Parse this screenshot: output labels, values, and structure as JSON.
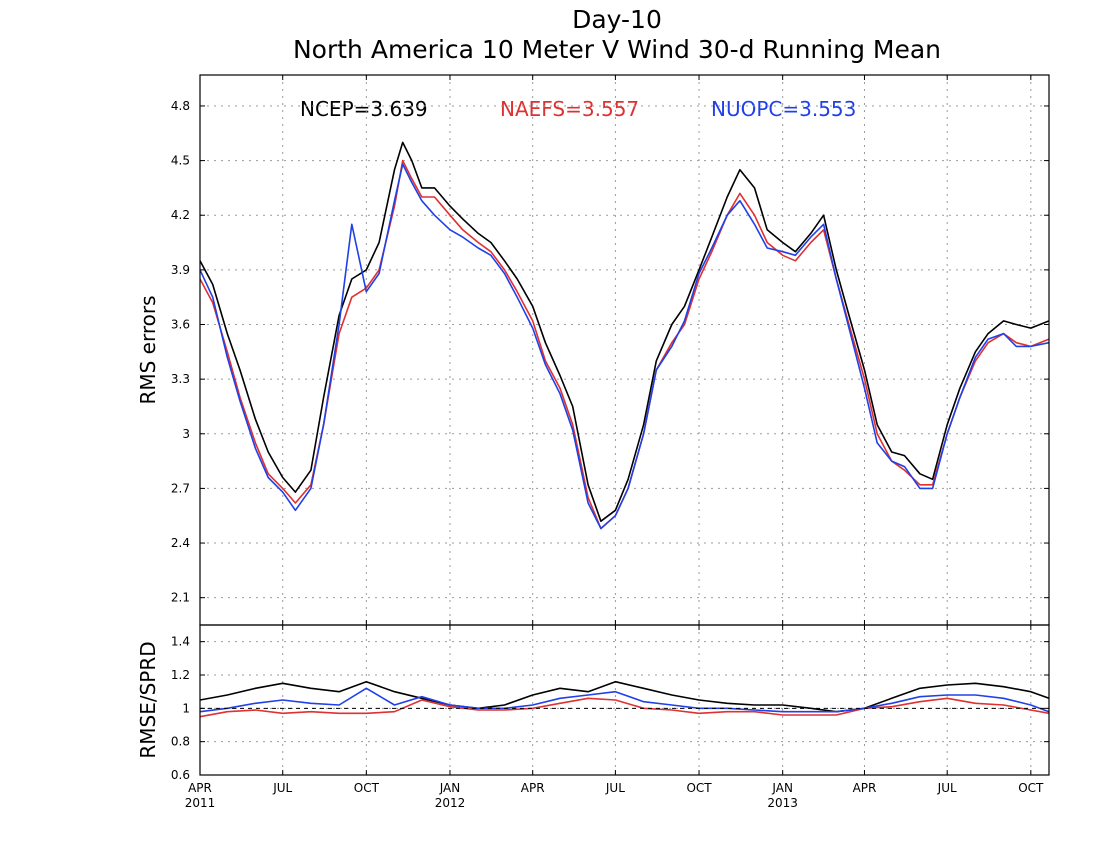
{
  "title_line1": "Day-10",
  "title_line2": "North America 10 Meter V Wind 30-d Running Mean",
  "colors": {
    "NCEP": "#000000",
    "NAEFS": "#e03030",
    "NUOPC": "#2040e8"
  },
  "chart_data": [
    {
      "type": "line",
      "ylabel": "RMS errors",
      "ylim": [
        1.95,
        4.97
      ],
      "yticks": [
        "2.1",
        "2.4",
        "2.7",
        "3",
        "3.3",
        "3.6",
        "3.9",
        "4.2",
        "4.5",
        "4.8"
      ],
      "grid": true,
      "legend": [
        {
          "name": "NCEP",
          "text": "NCEP=3.639"
        },
        {
          "name": "NAEFS",
          "text": "NAEFS=3.557"
        },
        {
          "name": "NUOPC",
          "text": "NUOPC=3.553"
        }
      ],
      "legend_position": "top",
      "x_range": [
        "2011-04-01",
        "2013-10-21"
      ],
      "series": [
        {
          "name": "NCEP",
          "x": [
            "2011-04-01",
            "2011-04-15",
            "2011-05-01",
            "2011-05-15",
            "2011-06-01",
            "2011-06-15",
            "2011-07-01",
            "2011-07-15",
            "2011-08-01",
            "2011-08-15",
            "2011-09-01",
            "2011-09-15",
            "2011-10-01",
            "2011-10-15",
            "2011-11-01",
            "2011-11-10",
            "2011-11-20",
            "2011-12-01",
            "2011-12-15",
            "2012-01-01",
            "2012-01-15",
            "2012-02-01",
            "2012-02-15",
            "2012-03-01",
            "2012-03-15",
            "2012-04-01",
            "2012-04-15",
            "2012-05-01",
            "2012-05-15",
            "2012-06-01",
            "2012-06-15",
            "2012-07-01",
            "2012-07-15",
            "2012-08-01",
            "2012-08-15",
            "2012-09-01",
            "2012-09-15",
            "2012-10-01",
            "2012-10-15",
            "2012-11-01",
            "2012-11-15",
            "2012-12-01",
            "2012-12-15",
            "2013-01-01",
            "2013-01-15",
            "2013-02-01",
            "2013-02-15",
            "2013-03-01",
            "2013-03-15",
            "2013-04-01",
            "2013-04-15",
            "2013-05-01",
            "2013-05-15",
            "2013-06-01",
            "2013-06-15",
            "2013-07-01",
            "2013-07-15",
            "2013-08-01",
            "2013-08-15",
            "2013-09-01",
            "2013-09-15",
            "2013-10-01",
            "2013-10-21"
          ],
          "values": [
            3.95,
            3.82,
            3.55,
            3.35,
            3.08,
            2.9,
            2.76,
            2.68,
            2.8,
            3.2,
            3.65,
            3.85,
            3.9,
            4.05,
            4.45,
            4.6,
            4.5,
            4.35,
            4.35,
            4.25,
            4.18,
            4.1,
            4.05,
            3.95,
            3.85,
            3.7,
            3.5,
            3.32,
            3.15,
            2.72,
            2.52,
            2.58,
            2.75,
            3.05,
            3.4,
            3.6,
            3.7,
            3.9,
            4.08,
            4.3,
            4.45,
            4.35,
            4.12,
            4.05,
            4.0,
            4.1,
            4.2,
            3.9,
            3.65,
            3.35,
            3.05,
            2.9,
            2.88,
            2.78,
            2.75,
            3.05,
            3.25,
            3.45,
            3.55,
            3.62,
            3.6,
            3.58,
            3.62
          ]
        },
        {
          "name": "NAEFS",
          "x": [
            "2011-04-01",
            "2011-04-15",
            "2011-05-01",
            "2011-05-15",
            "2011-06-01",
            "2011-06-15",
            "2011-07-01",
            "2011-07-15",
            "2011-08-01",
            "2011-08-15",
            "2011-09-01",
            "2011-09-15",
            "2011-10-01",
            "2011-10-15",
            "2011-11-01",
            "2011-11-10",
            "2011-11-20",
            "2011-12-01",
            "2011-12-15",
            "2012-01-01",
            "2012-01-15",
            "2012-02-01",
            "2012-02-15",
            "2012-03-01",
            "2012-03-15",
            "2012-04-01",
            "2012-04-15",
            "2012-05-01",
            "2012-05-15",
            "2012-06-01",
            "2012-06-15",
            "2012-07-01",
            "2012-07-15",
            "2012-08-01",
            "2012-08-15",
            "2012-09-01",
            "2012-09-15",
            "2012-10-01",
            "2012-10-15",
            "2012-11-01",
            "2012-11-15",
            "2012-12-01",
            "2012-12-15",
            "2013-01-01",
            "2013-01-15",
            "2013-02-01",
            "2013-02-15",
            "2013-03-01",
            "2013-03-15",
            "2013-04-01",
            "2013-04-15",
            "2013-05-01",
            "2013-05-15",
            "2013-06-01",
            "2013-06-15",
            "2013-07-01",
            "2013-07-15",
            "2013-08-01",
            "2013-08-15",
            "2013-09-01",
            "2013-09-15",
            "2013-10-01",
            "2013-10-21"
          ],
          "values": [
            3.85,
            3.72,
            3.45,
            3.2,
            2.95,
            2.78,
            2.7,
            2.62,
            2.72,
            3.05,
            3.55,
            3.75,
            3.8,
            3.9,
            4.25,
            4.5,
            4.4,
            4.3,
            4.3,
            4.2,
            4.12,
            4.05,
            4.0,
            3.9,
            3.78,
            3.62,
            3.4,
            3.25,
            3.05,
            2.65,
            2.48,
            2.55,
            2.7,
            3.0,
            3.35,
            3.5,
            3.6,
            3.85,
            4.0,
            4.2,
            4.32,
            4.2,
            4.05,
            3.98,
            3.95,
            4.05,
            4.12,
            3.85,
            3.6,
            3.3,
            3.0,
            2.85,
            2.8,
            2.72,
            2.72,
            3.0,
            3.2,
            3.4,
            3.5,
            3.55,
            3.5,
            3.48,
            3.52
          ]
        },
        {
          "name": "NUOPC",
          "x": [
            "2011-04-01",
            "2011-04-15",
            "2011-05-01",
            "2011-05-15",
            "2011-06-01",
            "2011-06-15",
            "2011-07-01",
            "2011-07-15",
            "2011-08-01",
            "2011-08-15",
            "2011-09-01",
            "2011-09-15",
            "2011-10-01",
            "2011-10-15",
            "2011-11-01",
            "2011-11-10",
            "2011-11-20",
            "2011-12-01",
            "2011-12-15",
            "2012-01-01",
            "2012-01-15",
            "2012-02-01",
            "2012-02-15",
            "2012-03-01",
            "2012-03-15",
            "2012-04-01",
            "2012-04-15",
            "2012-05-01",
            "2012-05-15",
            "2012-06-01",
            "2012-06-15",
            "2012-07-01",
            "2012-07-15",
            "2012-08-01",
            "2012-08-15",
            "2012-09-01",
            "2012-09-15",
            "2012-10-01",
            "2012-10-15",
            "2012-11-01",
            "2012-11-15",
            "2012-12-01",
            "2012-12-15",
            "2013-01-01",
            "2013-01-15",
            "2013-02-01",
            "2013-02-15",
            "2013-03-01",
            "2013-03-15",
            "2013-04-01",
            "2013-04-15",
            "2013-05-01",
            "2013-05-15",
            "2013-06-01",
            "2013-06-15",
            "2013-07-01",
            "2013-07-15",
            "2013-08-01",
            "2013-08-15",
            "2013-09-01",
            "2013-09-15",
            "2013-10-01",
            "2013-10-21"
          ],
          "values": [
            3.9,
            3.75,
            3.42,
            3.18,
            2.92,
            2.76,
            2.68,
            2.58,
            2.7,
            3.05,
            3.6,
            4.15,
            3.78,
            3.88,
            4.28,
            4.48,
            4.38,
            4.28,
            4.2,
            4.12,
            4.08,
            4.02,
            3.98,
            3.88,
            3.75,
            3.58,
            3.38,
            3.22,
            3.02,
            2.62,
            2.48,
            2.55,
            2.7,
            3.0,
            3.35,
            3.48,
            3.62,
            3.88,
            4.02,
            4.2,
            4.28,
            4.15,
            4.02,
            4.0,
            3.98,
            4.08,
            4.15,
            3.85,
            3.58,
            3.25,
            2.95,
            2.85,
            2.82,
            2.7,
            2.7,
            3.0,
            3.2,
            3.42,
            3.52,
            3.55,
            3.48,
            3.48,
            3.5
          ]
        }
      ]
    },
    {
      "type": "line",
      "ylabel": "RMSE/SPRD",
      "ylim": [
        0.6,
        1.5
      ],
      "yticks": [
        "0.6",
        "0.8",
        "1",
        "1.2",
        "1.4"
      ],
      "grid": true,
      "x_range": [
        "2011-04-01",
        "2013-10-21"
      ],
      "xticks": [
        {
          "date": "2011-04-01",
          "label": "APR",
          "year": "2011"
        },
        {
          "date": "2011-07-01",
          "label": "JUL",
          "year": ""
        },
        {
          "date": "2011-10-01",
          "label": "OCT",
          "year": ""
        },
        {
          "date": "2012-01-01",
          "label": "JAN",
          "year": "2012"
        },
        {
          "date": "2012-04-01",
          "label": "APR",
          "year": ""
        },
        {
          "date": "2012-07-01",
          "label": "JUL",
          "year": ""
        },
        {
          "date": "2012-10-01",
          "label": "OCT",
          "year": ""
        },
        {
          "date": "2013-01-01",
          "label": "JAN",
          "year": "2013"
        },
        {
          "date": "2013-04-01",
          "label": "APR",
          "year": ""
        },
        {
          "date": "2013-07-01",
          "label": "JUL",
          "year": ""
        },
        {
          "date": "2013-10-01",
          "label": "OCT",
          "year": ""
        }
      ],
      "series": [
        {
          "name": "NCEP",
          "x": [
            "2011-04-01",
            "2011-05-01",
            "2011-06-01",
            "2011-07-01",
            "2011-08-01",
            "2011-09-01",
            "2011-10-01",
            "2011-11-01",
            "2011-12-01",
            "2012-01-01",
            "2012-02-01",
            "2012-03-01",
            "2012-04-01",
            "2012-05-01",
            "2012-06-01",
            "2012-07-01",
            "2012-08-01",
            "2012-09-01",
            "2012-10-01",
            "2012-11-01",
            "2012-12-01",
            "2013-01-01",
            "2013-02-01",
            "2013-03-01",
            "2013-04-01",
            "2013-05-01",
            "2013-06-01",
            "2013-07-01",
            "2013-08-01",
            "2013-09-01",
            "2013-10-01",
            "2013-10-21"
          ],
          "values": [
            1.05,
            1.08,
            1.12,
            1.15,
            1.12,
            1.1,
            1.16,
            1.1,
            1.06,
            1.02,
            1.0,
            1.02,
            1.08,
            1.12,
            1.1,
            1.16,
            1.12,
            1.08,
            1.05,
            1.03,
            1.02,
            1.02,
            1.0,
            0.98,
            1.0,
            1.06,
            1.12,
            1.14,
            1.15,
            1.13,
            1.1,
            1.06
          ]
        },
        {
          "name": "NAEFS",
          "x": [
            "2011-04-01",
            "2011-05-01",
            "2011-06-01",
            "2011-07-01",
            "2011-08-01",
            "2011-09-01",
            "2011-10-01",
            "2011-11-01",
            "2011-12-01",
            "2012-01-01",
            "2012-02-01",
            "2012-03-01",
            "2012-04-01",
            "2012-05-01",
            "2012-06-01",
            "2012-07-01",
            "2012-08-01",
            "2012-09-01",
            "2012-10-01",
            "2012-11-01",
            "2012-12-01",
            "2013-01-01",
            "2013-02-01",
            "2013-03-01",
            "2013-04-01",
            "2013-05-01",
            "2013-06-01",
            "2013-07-01",
            "2013-08-01",
            "2013-09-01",
            "2013-10-01",
            "2013-10-21"
          ],
          "values": [
            0.95,
            0.98,
            0.99,
            0.97,
            0.98,
            0.97,
            0.97,
            0.98,
            1.05,
            1.01,
            0.99,
            0.99,
            1.0,
            1.03,
            1.06,
            1.05,
            1.0,
            0.99,
            0.97,
            0.98,
            0.98,
            0.96,
            0.96,
            0.96,
            1.0,
            1.01,
            1.04,
            1.06,
            1.03,
            1.02,
            0.99,
            0.97
          ]
        },
        {
          "name": "NUOPC",
          "x": [
            "2011-04-01",
            "2011-05-01",
            "2011-06-01",
            "2011-07-01",
            "2011-08-01",
            "2011-09-01",
            "2011-10-01",
            "2011-11-01",
            "2011-12-01",
            "2012-01-01",
            "2012-02-01",
            "2012-03-01",
            "2012-04-01",
            "2012-05-01",
            "2012-06-01",
            "2012-07-01",
            "2012-08-01",
            "2012-09-01",
            "2012-10-01",
            "2012-11-01",
            "2012-12-01",
            "2013-01-01",
            "2013-02-01",
            "2013-03-01",
            "2013-04-01",
            "2013-05-01",
            "2013-06-01",
            "2013-07-01",
            "2013-08-01",
            "2013-09-01",
            "2013-10-01",
            "2013-10-21"
          ],
          "values": [
            0.98,
            1.0,
            1.03,
            1.05,
            1.03,
            1.02,
            1.12,
            1.02,
            1.07,
            1.02,
            1.0,
            1.0,
            1.02,
            1.06,
            1.08,
            1.1,
            1.04,
            1.02,
            1.0,
            1.0,
            0.99,
            0.98,
            0.98,
            0.98,
            1.0,
            1.03,
            1.07,
            1.08,
            1.08,
            1.06,
            1.02,
            0.98
          ]
        }
      ]
    }
  ]
}
